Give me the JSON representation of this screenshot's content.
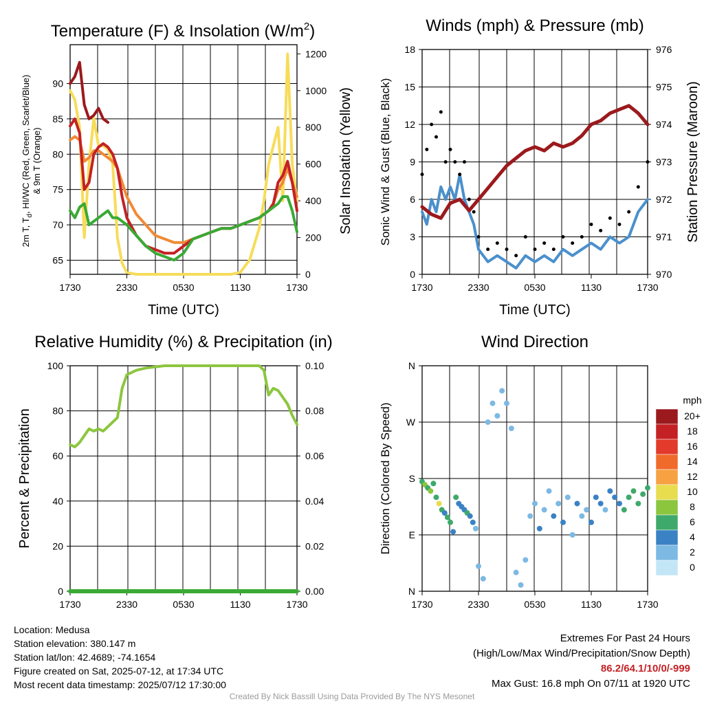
{
  "chart_data": [
    {
      "type": "line",
      "title": "Temperature (F) & Insolation (W/m",
      "title_superscript": "2",
      "title_suffix": ")",
      "xlabel": "Time (UTC)",
      "ylabel_left_line1": "2m T, T",
      "ylabel_left_sub": "d",
      "ylabel_left_rest": ", HI/WC (Red, Green, Scarlet/Blue)",
      "ylabel_left_line2": "& 9m T (Orange)",
      "ylabel_right": "Solar Insolation (Yellow)",
      "x_ticks": [
        "1730",
        "2330",
        "0530",
        "1130",
        "1730"
      ],
      "x_hours": [
        0,
        24
      ],
      "ylim_left": [
        63,
        95.5
      ],
      "y_ticks_left": [
        65,
        70,
        75,
        80,
        85,
        90
      ],
      "ylim_right": [
        0,
        1250
      ],
      "y_ticks_right": [
        0,
        200,
        400,
        600,
        800,
        1000,
        1200
      ],
      "grid": true,
      "series": [
        {
          "axis": "right",
          "color": "#f7dc5a",
          "x": [
            0,
            0.5,
            1,
            1.5,
            2,
            2.5,
            3,
            3.5,
            4,
            4.5,
            5,
            5.5,
            6,
            7,
            8,
            9,
            10,
            11,
            12,
            13,
            14,
            15,
            16,
            17,
            18,
            19,
            20,
            20.5,
            21,
            21.5,
            22,
            22.5,
            23,
            23.5,
            24
          ],
          "y": [
            1000,
            950,
            800,
            200,
            600,
            850,
            700,
            700,
            680,
            600,
            200,
            60,
            10,
            0,
            0,
            0,
            0,
            0,
            0,
            0,
            0,
            0,
            0,
            0,
            10,
            80,
            250,
            400,
            600,
            700,
            800,
            400,
            1200,
            600,
            400
          ]
        },
        {
          "axis": "left",
          "color": "#f08a35",
          "x": [
            0,
            0.5,
            1,
            1.5,
            2,
            2.5,
            3,
            3.5,
            4,
            4.5,
            5,
            5.5,
            6,
            7,
            8,
            9,
            10,
            11,
            12,
            13,
            14,
            15,
            16,
            17,
            18,
            19,
            20,
            20.5,
            21,
            21.5,
            22,
            22.5,
            23,
            23.5,
            24
          ],
          "y": [
            82,
            82.5,
            82,
            79,
            79.5,
            80.5,
            80.5,
            80,
            79.5,
            79,
            78,
            76,
            74,
            71.5,
            70,
            68.5,
            68,
            67.5,
            67.5,
            68,
            68.5,
            69,
            69.5,
            69.5,
            70,
            70.5,
            71,
            71.5,
            72,
            73,
            75,
            76,
            78,
            76,
            74
          ]
        },
        {
          "axis": "left",
          "color": "#c42125",
          "x": [
            0,
            0.5,
            1,
            1.5,
            2,
            2.5,
            3,
            3.5,
            4,
            4.5,
            5,
            5.5,
            6,
            7,
            8,
            9,
            10,
            11,
            12,
            13,
            14,
            15,
            16,
            17,
            18,
            19,
            20,
            20.5,
            21,
            21.5,
            22,
            22.5,
            23,
            23.5,
            24
          ],
          "y": [
            84,
            85,
            83,
            75,
            76,
            80,
            81,
            81.5,
            81,
            80,
            78,
            74,
            71,
            68.5,
            67,
            66.5,
            66,
            66,
            67,
            68,
            68.5,
            69,
            69.5,
            69.5,
            70,
            70.5,
            71,
            71.5,
            72,
            73,
            76,
            77,
            79,
            76,
            72
          ]
        },
        {
          "axis": "left",
          "color": "#3aaa35",
          "x": [
            0,
            0.5,
            1,
            1.5,
            2,
            2.5,
            3,
            3.5,
            4,
            4.5,
            5,
            5.5,
            6,
            7,
            8,
            9,
            10,
            11,
            12,
            13,
            14,
            15,
            16,
            17,
            18,
            19,
            20,
            20.5,
            21,
            21.5,
            22,
            22.5,
            23,
            23.5,
            24
          ],
          "y": [
            72,
            71,
            72.5,
            73,
            70,
            70.5,
            71,
            71.5,
            72,
            71,
            71,
            70.5,
            70,
            68.5,
            67,
            66,
            65.5,
            65,
            66,
            68,
            68.5,
            69,
            69.5,
            69.5,
            70,
            70.5,
            71,
            71.5,
            72,
            72.5,
            73,
            74,
            74,
            72,
            69
          ]
        },
        {
          "axis": "left",
          "color": "#9b1a1d",
          "x": [
            0,
            0.5,
            1,
            1.5,
            2,
            2.5,
            3,
            3.5,
            4
          ],
          "y": [
            90,
            91,
            93,
            87,
            85,
            85.5,
            86.5,
            85,
            84.5
          ]
        }
      ]
    },
    {
      "type": "line",
      "title": "Winds (mph) & Pressure (mb)",
      "xlabel": "Time (UTC)",
      "ylabel_left": "Sonic Wind & Gust (Blue, Black)",
      "ylabel_right": "Station Pressure (Maroon)",
      "x_ticks": [
        "1730",
        "2330",
        "0530",
        "1130",
        "1730"
      ],
      "ylim_left": [
        0,
        18
      ],
      "y_ticks_left": [
        0,
        3,
        6,
        9,
        12,
        15,
        18
      ],
      "ylim_right": [
        970,
        976
      ],
      "y_ticks_right": [
        970,
        971,
        972,
        973,
        974,
        975,
        976
      ],
      "grid": true,
      "series": [
        {
          "axis": "left",
          "name": "Sonic Wind",
          "color": "#4a90cc",
          "x": [
            0,
            0.5,
            1,
            1.5,
            2,
            2.5,
            3,
            3.5,
            4,
            4.5,
            5,
            5.5,
            6,
            7,
            8,
            9,
            10,
            11,
            12,
            13,
            14,
            15,
            16,
            17,
            18,
            19,
            20,
            21,
            22,
            23,
            24
          ],
          "y": [
            5,
            4,
            6,
            5,
            7,
            6,
            7,
            6,
            8,
            6,
            5,
            4,
            2,
            1,
            1.5,
            1,
            0.5,
            1.5,
            1,
            1.5,
            1,
            2,
            1.5,
            2,
            2.5,
            2,
            3,
            2.5,
            3,
            5,
            6
          ]
        },
        {
          "axis": "left",
          "name": "Gust",
          "color": "#000000",
          "x": [
            0,
            0.5,
            1,
            1.5,
            2,
            2.5,
            3,
            3.5,
            4,
            4.5,
            5,
            5.5,
            6,
            7,
            8,
            9,
            10,
            11,
            12,
            13,
            14,
            15,
            16,
            17,
            18,
            19,
            20,
            21,
            22,
            23,
            24
          ],
          "y": [
            8,
            10,
            12,
            11,
            13,
            9,
            10,
            9,
            8,
            9,
            6,
            5,
            3,
            2,
            2.5,
            2,
            1.5,
            3,
            2,
            2.5,
            2,
            3,
            2.5,
            3,
            4,
            3.5,
            4.5,
            4,
            5,
            7,
            9
          ]
        },
        {
          "axis": "right",
          "name": "Station Pressure",
          "color": "#9b1a1d",
          "x": [
            0,
            1,
            2,
            3,
            4,
            5,
            6,
            7,
            8,
            9,
            10,
            11,
            12,
            13,
            14,
            15,
            16,
            17,
            18,
            19,
            20,
            21,
            22,
            23,
            24
          ],
          "y": [
            971.8,
            971.6,
            971.5,
            971.9,
            972.0,
            971.7,
            972.0,
            972.3,
            972.6,
            972.9,
            973.1,
            973.3,
            973.4,
            973.3,
            973.5,
            973.4,
            973.5,
            973.7,
            974.0,
            974.1,
            974.3,
            974.4,
            974.5,
            974.3,
            974.0
          ]
        }
      ]
    },
    {
      "type": "line",
      "title": "Relative Humidity (%) & Precipitation (in)",
      "ylabel_left": "Percent & Precipitation",
      "x_ticks": [
        "1730",
        "2330",
        "0530",
        "1130",
        "1730"
      ],
      "ylim_left": [
        0,
        100
      ],
      "y_ticks_left": [
        0,
        20,
        40,
        60,
        80,
        100
      ],
      "ylim_right": [
        0,
        0.1
      ],
      "y_ticks_right": [
        "0.00",
        "0.02",
        "0.04",
        "0.06",
        "0.08",
        "0.10"
      ],
      "grid": true,
      "series": [
        {
          "axis": "left",
          "name": "Relative Humidity",
          "color": "#8cc63f",
          "x": [
            0,
            0.5,
            1,
            1.5,
            2,
            2.5,
            3,
            3.5,
            4,
            4.5,
            5,
            5.5,
            6,
            7,
            8,
            9,
            10,
            11,
            12,
            13,
            14,
            15,
            16,
            17,
            18,
            19,
            20,
            20.5,
            21,
            21.5,
            22,
            22.5,
            23,
            23.5,
            24
          ],
          "y": [
            65,
            64,
            66,
            69,
            72,
            71,
            72,
            71,
            73,
            75,
            77,
            90,
            96,
            98,
            99,
            99.5,
            100,
            100,
            100,
            100,
            100,
            100,
            100,
            100,
            100,
            100,
            100,
            98,
            87,
            90,
            89,
            86,
            83,
            78,
            74
          ]
        },
        {
          "axis": "right",
          "name": "Precipitation",
          "color": "#3aaa35",
          "x": [
            0,
            24
          ],
          "y": [
            0,
            0
          ]
        }
      ]
    },
    {
      "type": "scatter",
      "title": "Wind Direction",
      "ylabel_left": "Direction (Colored By Speed)",
      "x_ticks": [
        "1730",
        "2330",
        "0530",
        "1130",
        "1730"
      ],
      "y_ticks_left": [
        "N",
        "E",
        "S",
        "W",
        "N"
      ],
      "ylim_left": [
        0,
        360
      ],
      "grid": true,
      "colorbar_title": "mph",
      "colorbar_labels": [
        "20+",
        "18",
        "16",
        "14",
        "12",
        "10",
        "8",
        "6",
        "4",
        "2",
        "0"
      ],
      "colorbar_colors": [
        "#9b1a1d",
        "#c42125",
        "#e23a2b",
        "#f06a2c",
        "#f7a142",
        "#e8dc4f",
        "#8cc63f",
        "#3fa96b",
        "#3b82c4",
        "#7cb9e3",
        "#c3e6f7"
      ],
      "points": [
        [
          0,
          175,
          6
        ],
        [
          0.3,
          170,
          7
        ],
        [
          0.6,
          165,
          5
        ],
        [
          0.9,
          160,
          8
        ],
        [
          1.2,
          172,
          6
        ],
        [
          1.5,
          150,
          5
        ],
        [
          1.8,
          140,
          9
        ],
        [
          2.1,
          130,
          6
        ],
        [
          2.4,
          125,
          4
        ],
        [
          2.7,
          118,
          5
        ],
        [
          3,
          110,
          6
        ],
        [
          3.3,
          95,
          4
        ],
        [
          3.6,
          150,
          5
        ],
        [
          3.9,
          140,
          4
        ],
        [
          4.2,
          135,
          3
        ],
        [
          4.5,
          130,
          4
        ],
        [
          4.8,
          125,
          5
        ],
        [
          5.1,
          120,
          4
        ],
        [
          5.4,
          110,
          3
        ],
        [
          5.7,
          100,
          2
        ],
        [
          6,
          40,
          2
        ],
        [
          6.5,
          20,
          1
        ],
        [
          7,
          270,
          2
        ],
        [
          7.5,
          300,
          1
        ],
        [
          8,
          280,
          2
        ],
        [
          8.5,
          320,
          1
        ],
        [
          9,
          300,
          2
        ],
        [
          9.5,
          260,
          1
        ],
        [
          10,
          30,
          2
        ],
        [
          10.5,
          10,
          1
        ],
        [
          11,
          50,
          1
        ],
        [
          11.5,
          120,
          2
        ],
        [
          12,
          140,
          2
        ],
        [
          12.5,
          100,
          3
        ],
        [
          13,
          130,
          2
        ],
        [
          13.5,
          160,
          1
        ],
        [
          14,
          120,
          3
        ],
        [
          14.5,
          140,
          2
        ],
        [
          15,
          110,
          3
        ],
        [
          15.5,
          150,
          2
        ],
        [
          16,
          90,
          2
        ],
        [
          16.5,
          140,
          3
        ],
        [
          17,
          120,
          2
        ],
        [
          17.5,
          130,
          2
        ],
        [
          18,
          110,
          3
        ],
        [
          18.5,
          150,
          3
        ],
        [
          19,
          140,
          4
        ],
        [
          19.5,
          130,
          2
        ],
        [
          20,
          160,
          3
        ],
        [
          20.5,
          150,
          4
        ],
        [
          21,
          140,
          4
        ],
        [
          21.5,
          130,
          5
        ],
        [
          22,
          150,
          6
        ],
        [
          22.5,
          160,
          5
        ],
        [
          23,
          140,
          6
        ],
        [
          23.5,
          155,
          5
        ],
        [
          24,
          165,
          6
        ]
      ]
    }
  ],
  "info": {
    "location": "Location: Medusa",
    "elevation": "Station elevation: 380.147 m",
    "latlon": "Station lat/lon: 42.4689; -74.1654",
    "created": "Figure created on Sat, 2025-07-12, at 17:34 UTC",
    "recent": "Most recent data timestamp: 2025/07/12 17:30:00"
  },
  "extremes": {
    "title": "Extremes For Past 24 Hours",
    "subtitle": "(High/Low/Max Wind/Precipitation/Snow Depth)",
    "values": "86.2/64.1/10/0/-999",
    "max_gust": "Max Gust: 16.8 mph On 07/11 at 1920 UTC"
  },
  "credit": "Created By Nick Bassill Using Data Provided By The NYS Mesonet"
}
